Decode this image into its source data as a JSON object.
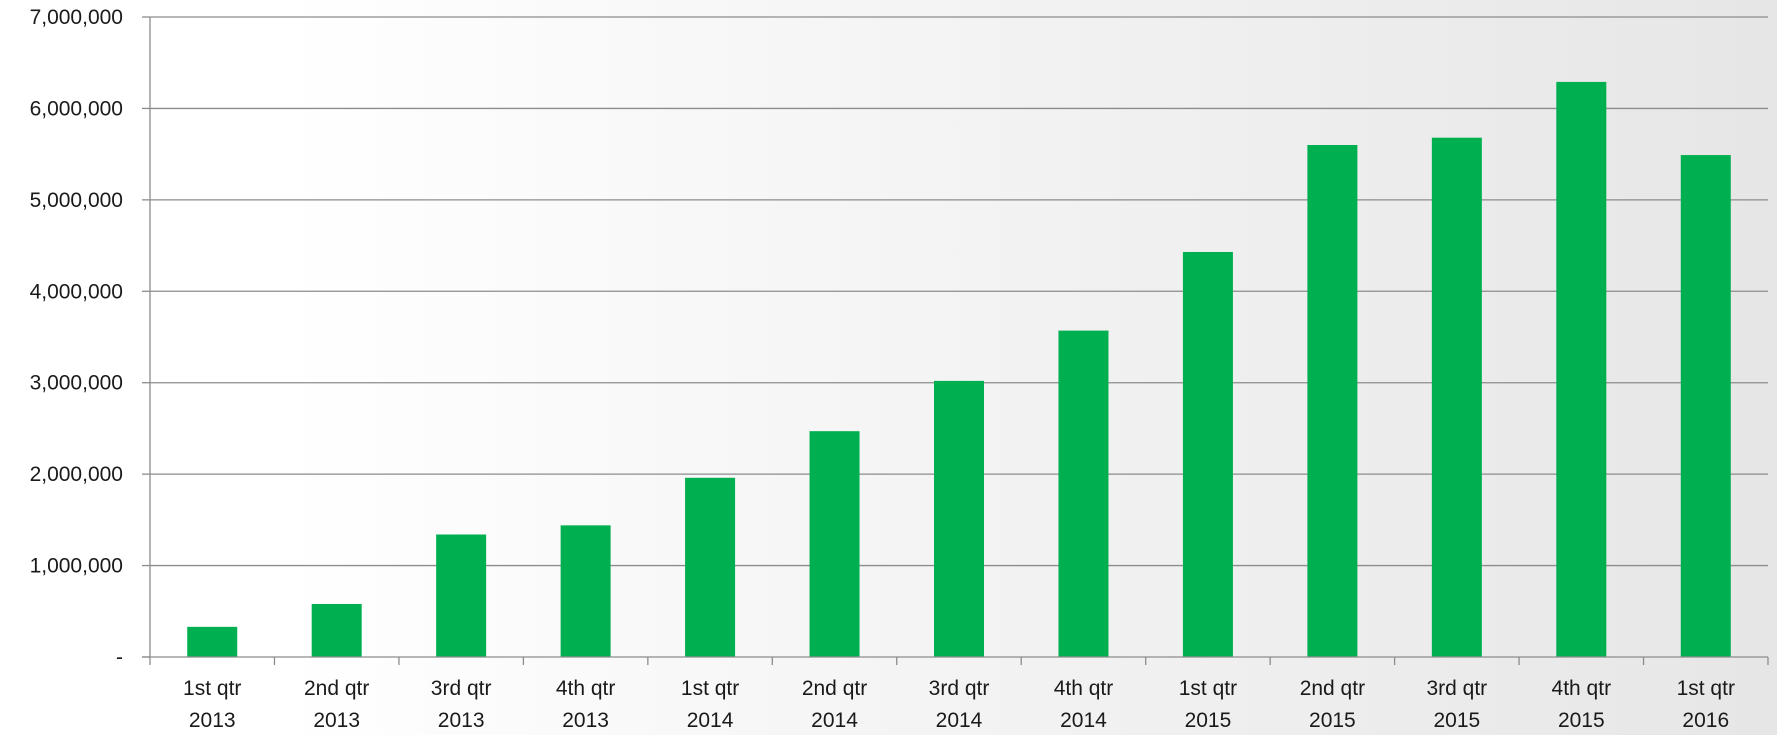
{
  "chart_data": {
    "type": "bar",
    "title": "",
    "xlabel": "",
    "ylabel": "",
    "categories": [
      [
        "1st qtr",
        "2013"
      ],
      [
        "2nd qtr",
        "2013"
      ],
      [
        "3rd qtr",
        "2013"
      ],
      [
        "4th qtr",
        "2013"
      ],
      [
        "1st qtr",
        "2014"
      ],
      [
        "2nd qtr",
        "2014"
      ],
      [
        "3rd qtr",
        "2014"
      ],
      [
        "4th qtr",
        "2014"
      ],
      [
        "1st qtr",
        "2015"
      ],
      [
        "2nd qtr",
        "2015"
      ],
      [
        "3rd qtr",
        "2015"
      ],
      [
        "4th qtr",
        "2015"
      ],
      [
        "1st qtr",
        "2016"
      ]
    ],
    "values": [
      330000,
      580000,
      1340000,
      1440000,
      1960000,
      2470000,
      3020000,
      3570000,
      4430000,
      5600000,
      5680000,
      6290000,
      5490000
    ],
    "ylim": [
      0,
      7000000
    ],
    "yticks": [
      0,
      1000000,
      2000000,
      3000000,
      4000000,
      5000000,
      6000000,
      7000000
    ],
    "ytick_labels": [
      "-",
      "1,000,000",
      "2,000,000",
      "3,000,000",
      "4,000,000",
      "5,000,000",
      "6,000,000",
      "7,000,000"
    ],
    "grid": true,
    "legend": "none",
    "bar_color": "#00b050",
    "grid_color": "#8c8c8c"
  }
}
